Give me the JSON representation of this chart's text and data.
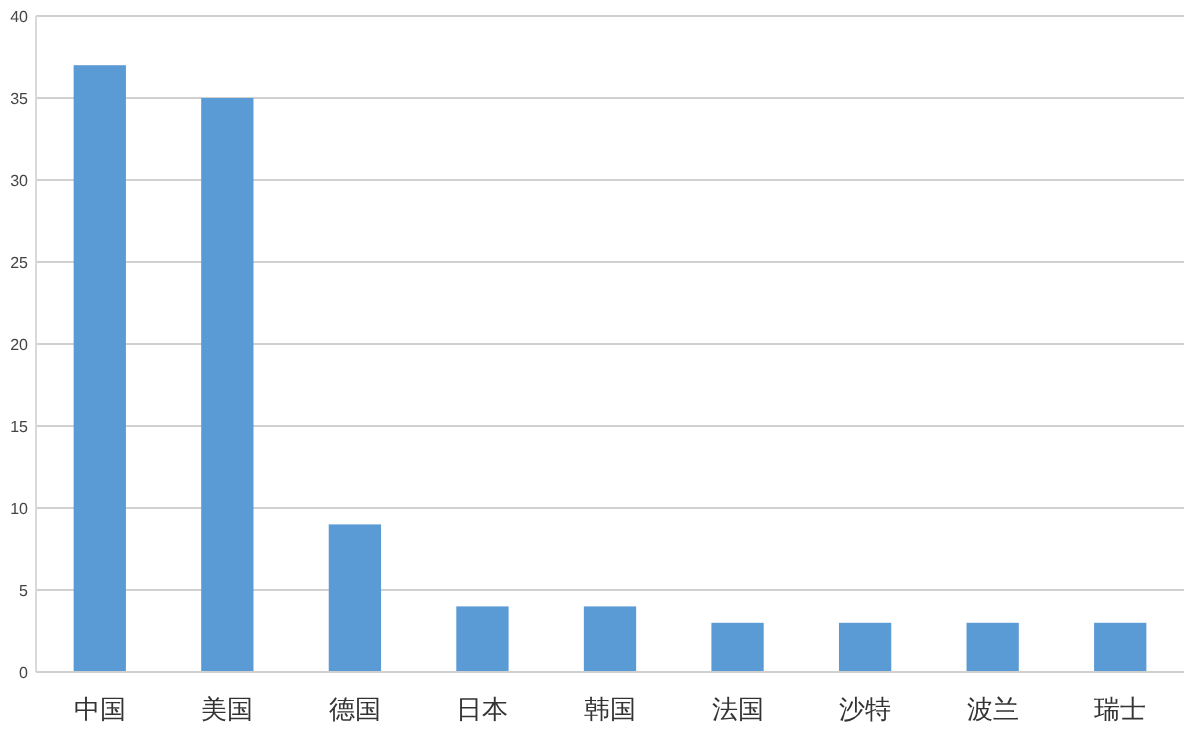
{
  "chart_data": {
    "type": "bar",
    "categories": [
      "中国",
      "美国",
      "德国",
      "日本",
      "韩国",
      "法国",
      "沙特",
      "波兰",
      "瑞士"
    ],
    "values": [
      37,
      35,
      9,
      4,
      4,
      3,
      3,
      3,
      3
    ],
    "color": "#5b9bd5",
    "ylim": [
      0,
      40
    ],
    "yticks": [
      0,
      5,
      10,
      15,
      20,
      25,
      30,
      35,
      40
    ],
    "grid": "y"
  }
}
